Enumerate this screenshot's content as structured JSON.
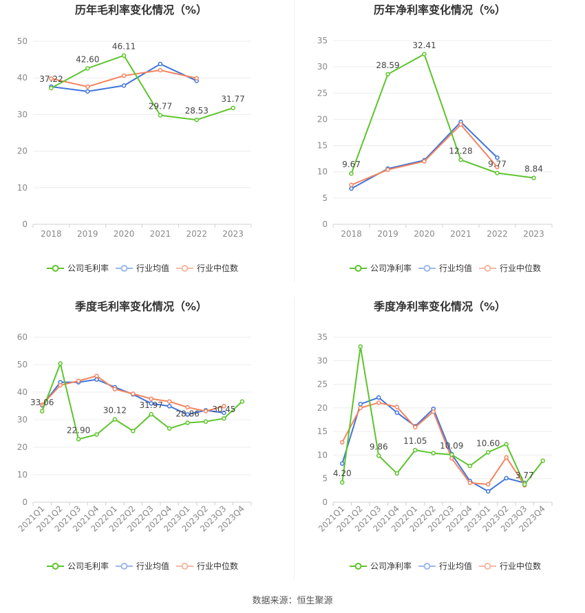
{
  "colors": {
    "company": "#5cc42a",
    "industry_avg": "#3f73db",
    "industry_median": "#f3845f"
  },
  "legend": {
    "gross_company": "公司毛利率",
    "net_company": "公司净利率",
    "industry_avg": "行业均值",
    "industry_median": "行业中位数"
  },
  "footer": {
    "source": "数据来源：恒生聚源"
  },
  "chart_data": [
    {
      "type": "line",
      "title": "历年毛利率变化情况（%）",
      "categories": [
        "2018",
        "2019",
        "2020",
        "2021",
        "2022",
        "2023"
      ],
      "ylim": [
        0,
        50
      ],
      "yticks": [
        0,
        10,
        20,
        30,
        40,
        50
      ],
      "series": [
        {
          "name": "公司毛利率",
          "key": "company",
          "values": [
            37.22,
            42.6,
            46.11,
            29.77,
            28.53,
            31.77
          ],
          "labels": [
            "37.22",
            "42.60",
            "46.11",
            "29.77",
            "28.53",
            "31.77"
          ]
        },
        {
          "name": "行业均值",
          "key": "industry_avg",
          "values": [
            37.6,
            36.3,
            37.9,
            43.8,
            39.2,
            null
          ]
        },
        {
          "name": "行业中位数",
          "key": "industry_median",
          "values": [
            39.8,
            37.6,
            40.6,
            42.1,
            39.9,
            null
          ]
        }
      ]
    },
    {
      "type": "line",
      "title": "历年净利率变化情况（%）",
      "categories": [
        "2018",
        "2019",
        "2020",
        "2021",
        "2022",
        "2023"
      ],
      "ylim": [
        0,
        35
      ],
      "yticks": [
        0,
        5,
        10,
        15,
        20,
        25,
        30,
        35
      ],
      "series": [
        {
          "name": "公司净利率",
          "key": "company",
          "values": [
            9.67,
            28.59,
            32.41,
            12.28,
            9.77,
            8.84
          ],
          "labels": [
            "9.67",
            "28.59",
            "32.41",
            "12.28",
            "9.77",
            "8.84"
          ]
        },
        {
          "name": "行业均值",
          "key": "industry_avg",
          "values": [
            6.8,
            10.6,
            12.2,
            19.5,
            12.7,
            null
          ]
        },
        {
          "name": "行业中位数",
          "key": "industry_median",
          "values": [
            7.5,
            10.4,
            12.0,
            19.0,
            10.9,
            null
          ]
        }
      ]
    },
    {
      "type": "line",
      "title": "季度毛利率变化情况（%）",
      "categories": [
        "2021Q1",
        "2021Q2",
        "2021Q3",
        "2021Q4",
        "2022Q1",
        "2022Q2",
        "2022Q3",
        "2022Q4",
        "2023Q1",
        "2023Q2",
        "2023Q3",
        "2023Q4"
      ],
      "ylim": [
        0,
        60
      ],
      "yticks": [
        0,
        10,
        20,
        30,
        40,
        50,
        60
      ],
      "series": [
        {
          "name": "公司毛利率",
          "key": "company",
          "values": [
            33.06,
            50.4,
            22.9,
            24.6,
            30.12,
            25.9,
            31.97,
            26.8,
            28.86,
            29.3,
            30.45,
            36.6
          ],
          "labels": [
            "33.06",
            null,
            "22.90",
            null,
            "30.12",
            null,
            "31.97",
            null,
            "28.86",
            null,
            "30.45",
            null
          ]
        },
        {
          "name": "行业均值",
          "key": "industry_avg",
          "values": [
            35.2,
            43.6,
            43.6,
            44.6,
            41.8,
            39.2,
            35.9,
            34.9,
            31.9,
            33.4,
            32.5,
            null
          ]
        },
        {
          "name": "行业中位数",
          "key": "industry_median",
          "values": [
            35.4,
            42.5,
            44.1,
            45.9,
            41.1,
            39.4,
            37.6,
            36.6,
            34.5,
            33.1,
            34.9,
            null
          ]
        }
      ]
    },
    {
      "type": "line",
      "title": "季度净利率变化情况（%）",
      "categories": [
        "2021Q1",
        "2021Q2",
        "2021Q3",
        "2021Q4",
        "2022Q1",
        "2022Q2",
        "2022Q3",
        "2022Q4",
        "2023Q1",
        "2023Q2",
        "2023Q3",
        "2023Q4"
      ],
      "ylim": [
        0,
        35
      ],
      "yticks": [
        0,
        5,
        10,
        15,
        20,
        25,
        30,
        35
      ],
      "series": [
        {
          "name": "公司净利率",
          "key": "company",
          "values": [
            4.2,
            33.0,
            9.86,
            6.1,
            11.05,
            10.4,
            10.09,
            7.7,
            10.6,
            12.3,
            3.77,
            8.8
          ],
          "labels": [
            "4.20",
            null,
            "9.86",
            null,
            "11.05",
            null,
            "10.09",
            null,
            "10.60",
            null,
            "3.77",
            null
          ]
        },
        {
          "name": "行业均值",
          "key": "industry_avg",
          "values": [
            8.2,
            20.8,
            22.2,
            19.0,
            16.1,
            19.8,
            10.2,
            4.5,
            2.3,
            5.1,
            4.1,
            null
          ]
        },
        {
          "name": "行业中位数",
          "key": "industry_median",
          "values": [
            12.7,
            20.0,
            21.1,
            20.2,
            15.9,
            19.2,
            9.3,
            4.1,
            3.8,
            9.5,
            3.6,
            null
          ]
        }
      ]
    }
  ]
}
